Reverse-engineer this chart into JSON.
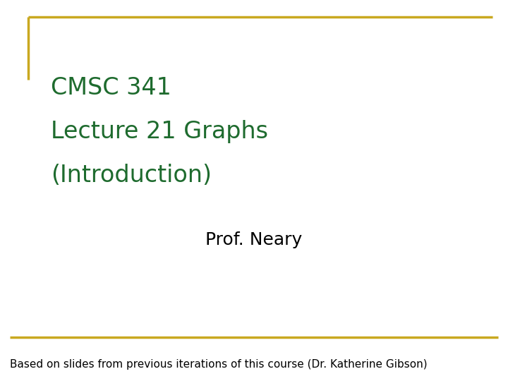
{
  "bg_color": "#ffffff",
  "border_color": "#C9A820",
  "title_lines": [
    "CMSC 341",
    "Lecture 21 Graphs",
    "(Introduction)"
  ],
  "title_color": "#1E6B2E",
  "title_fontsize": 24,
  "prof_text": "Prof. Neary",
  "prof_color": "#000000",
  "prof_fontsize": 18,
  "footer_text": "Based on slides from previous iterations of this course (Dr. Katherine Gibson)",
  "footer_color": "#000000",
  "footer_fontsize": 11,
  "border_linewidth": 2.5
}
